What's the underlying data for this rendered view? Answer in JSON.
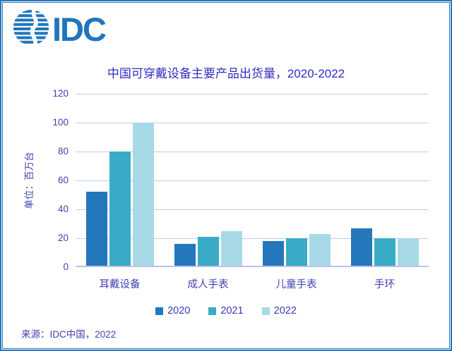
{
  "logo": {
    "text": "IDC"
  },
  "chart_data": {
    "type": "bar",
    "title": "中国可穿戴设备主要产品出货量，2020-2022",
    "ylabel": "单位：百万台",
    "categories": [
      "耳戴设备",
      "成人手表",
      "儿童手表",
      "手环"
    ],
    "series": [
      {
        "name": "2020",
        "color": "#2577BB",
        "values": [
          51,
          15,
          17,
          26
        ]
      },
      {
        "name": "2021",
        "color": "#3AABC7",
        "values": [
          79,
          20,
          19,
          19
        ]
      },
      {
        "name": "2022",
        "color": "#A7DAE6",
        "values": [
          99,
          24,
          22,
          19
        ]
      }
    ],
    "ylim": [
      0,
      120
    ],
    "yticks": [
      0,
      20,
      40,
      60,
      80,
      100,
      120
    ],
    "grid": true,
    "legend_position": "bottom"
  },
  "source": {
    "text": "来源：IDC中国，2022"
  },
  "colors": {
    "brand_blue": "#2076BC",
    "frame_border": "#2777BD",
    "title_text": "#2D2DC6",
    "label_text": "#4141B3",
    "gridline": "#C5C8F0"
  }
}
